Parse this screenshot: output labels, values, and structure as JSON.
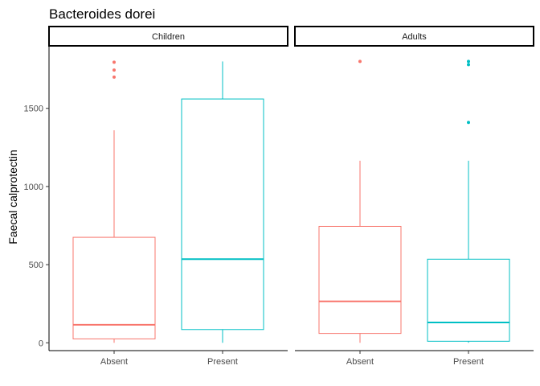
{
  "chart_data": {
    "type": "boxplot",
    "title": "Bacteroides dorei",
    "ylabel": "Faecal calprotectin",
    "xlabel": "",
    "ylim": [
      -50,
      1900
    ],
    "yticks": [
      0,
      500,
      1000,
      1500
    ],
    "ytick_labels": [
      "0",
      "500",
      "1000",
      "1500"
    ],
    "categories": [
      "Absent",
      "Present"
    ],
    "colors": {
      "Absent": "#F8766D",
      "Present": "#00BFC4"
    },
    "legend": "none",
    "grid": false,
    "panels": [
      {
        "name": "Children",
        "boxes": [
          {
            "category": "Absent",
            "whisker_low": 0,
            "q1": 25,
            "median": 115,
            "q3": 675,
            "whisker_high": 1360,
            "outliers": [
              1700,
              1745,
              1795
            ]
          },
          {
            "category": "Present",
            "whisker_low": 0,
            "q1": 85,
            "median": 535,
            "q3": 1560,
            "whisker_high": 1800,
            "outliers": []
          }
        ]
      },
      {
        "name": "Adults",
        "boxes": [
          {
            "category": "Absent",
            "whisker_low": 0,
            "q1": 60,
            "median": 265,
            "q3": 745,
            "whisker_high": 1165,
            "outliers": [
              1800
            ]
          },
          {
            "category": "Present",
            "whisker_low": 0,
            "q1": 10,
            "median": 130,
            "q3": 535,
            "whisker_high": 1165,
            "outliers": [
              1410,
              1780,
              1800
            ]
          }
        ]
      }
    ]
  }
}
